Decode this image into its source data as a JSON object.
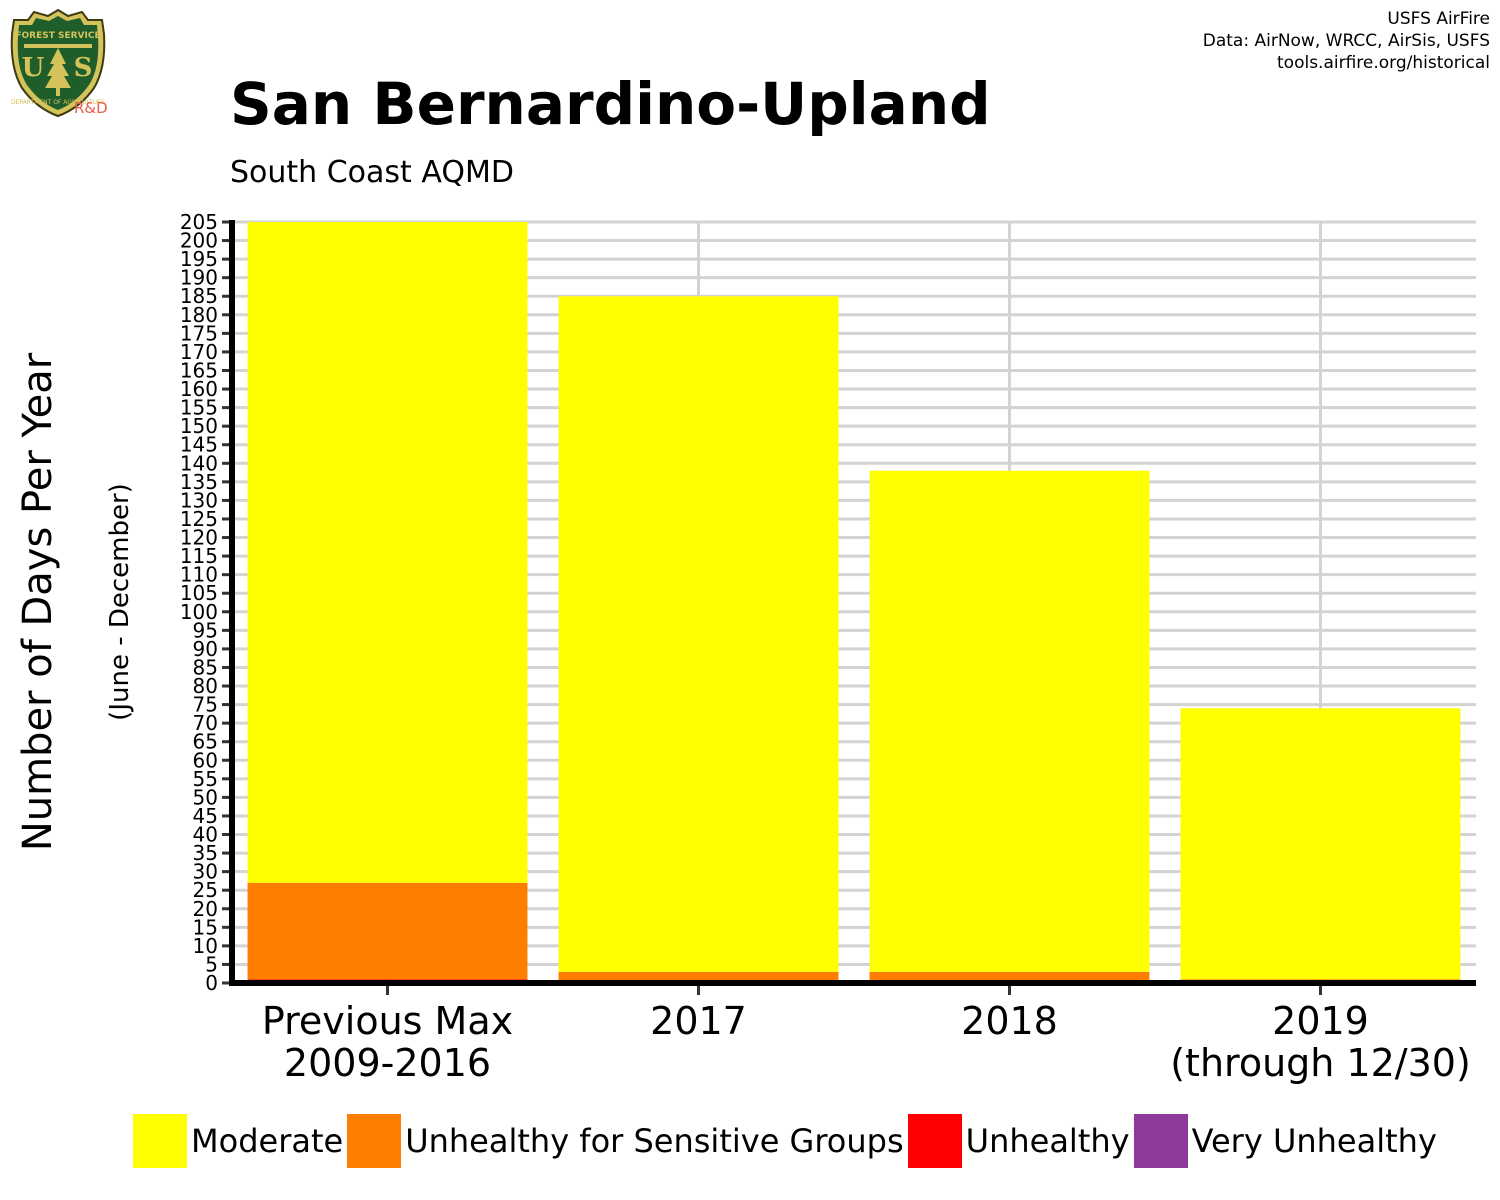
{
  "header": {
    "credit_lines": [
      "USFS AirFire",
      "Data: AirNow, WRCC, AirSis, USFS",
      "tools.airfire.org/historical"
    ],
    "logo_alt": "R&D"
  },
  "chart_data": {
    "type": "bar",
    "stacked": true,
    "title": "San Bernardino-Upland",
    "subtitle": "South Coast AQMD",
    "ylabel": "Number of Days Per Year",
    "ylabel_sub": "(June - December)",
    "xlabel": "",
    "categories": [
      [
        "Previous Max",
        "2009-2016"
      ],
      [
        "2017"
      ],
      [
        "2018"
      ],
      [
        "2019",
        "(through 12/30)"
      ]
    ],
    "series": [
      {
        "name": "Very Unhealthy",
        "color": "#8E3A99",
        "values": [
          0,
          0,
          0,
          0
        ]
      },
      {
        "name": "Unhealthy",
        "color": "#FF0000",
        "values": [
          1,
          0,
          0,
          0
        ]
      },
      {
        "name": "Unhealthy for Sensitive Groups",
        "color": "#FF7E00",
        "values": [
          26,
          3,
          3,
          1
        ]
      },
      {
        "name": "Moderate",
        "color": "#FFFF00",
        "values": [
          178,
          182,
          135,
          73
        ]
      }
    ],
    "legend_order": [
      "Moderate",
      "Unhealthy for Sensitive Groups",
      "Unhealthy",
      "Very Unhealthy"
    ],
    "ylim": [
      0,
      205
    ],
    "ytick_step": 5,
    "grid": true,
    "legend_position": "bottom"
  }
}
